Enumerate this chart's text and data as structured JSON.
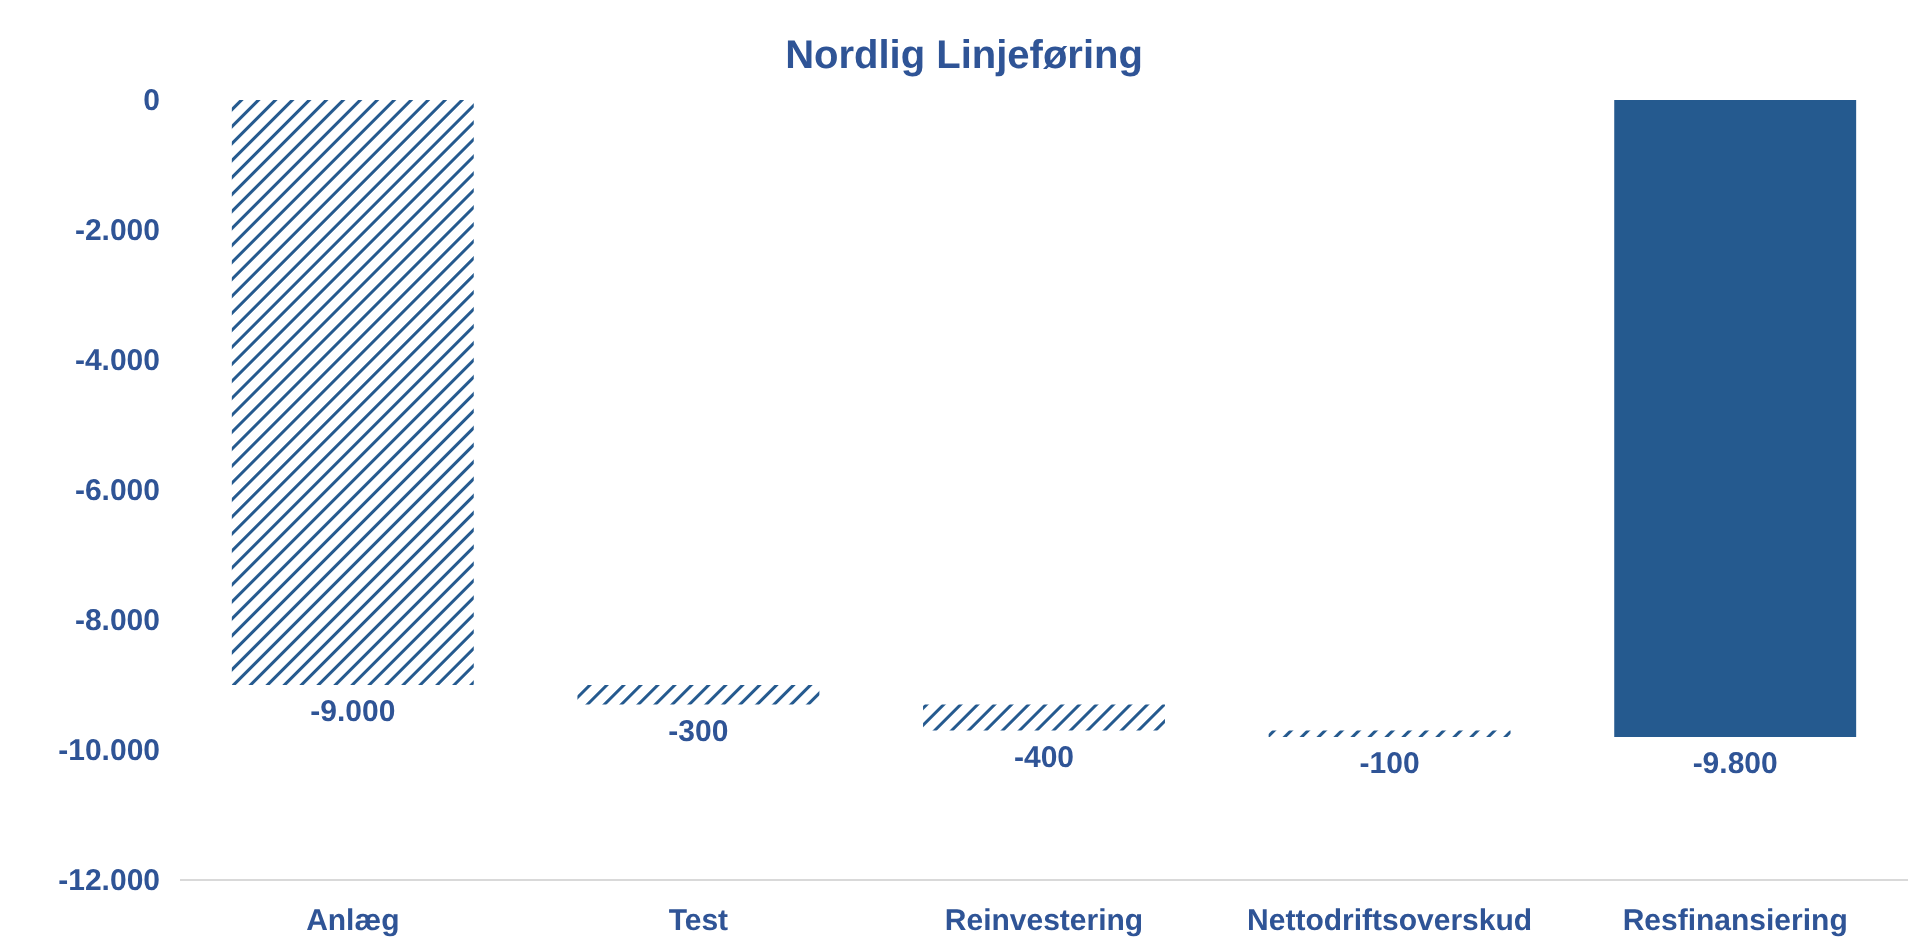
{
  "chart_data": {
    "type": "bar",
    "title": "Nordlig Linjeføring",
    "categories": [
      "Anlæg",
      "Test",
      "Reinvestering",
      "Nettodriftsoverskud",
      "Resfinansiering"
    ],
    "values": [
      -9000,
      -300,
      -400,
      -100,
      -9800
    ],
    "base": [
      0,
      -9000,
      -9300,
      -9700,
      0
    ],
    "colors": [
      "#255a8f",
      "#255a8f",
      "#255a8f",
      "#255a8f",
      "#255a8f"
    ],
    "value_labels": [
      "-9.000",
      "-300",
      "-400",
      "-100",
      "-9.800"
    ],
    "ylim": [
      -12000,
      0
    ],
    "yticks": [
      {
        "value": 0,
        "label": "0"
      },
      {
        "value": -2000,
        "label": "-2.000"
      },
      {
        "value": -4000,
        "label": "-4.000"
      },
      {
        "value": -6000,
        "label": "-6.000"
      },
      {
        "value": -8000,
        "label": "-8.000"
      },
      {
        "value": -10000,
        "label": "-10.000"
      },
      {
        "value": -12000,
        "label": "-12.000"
      }
    ]
  }
}
